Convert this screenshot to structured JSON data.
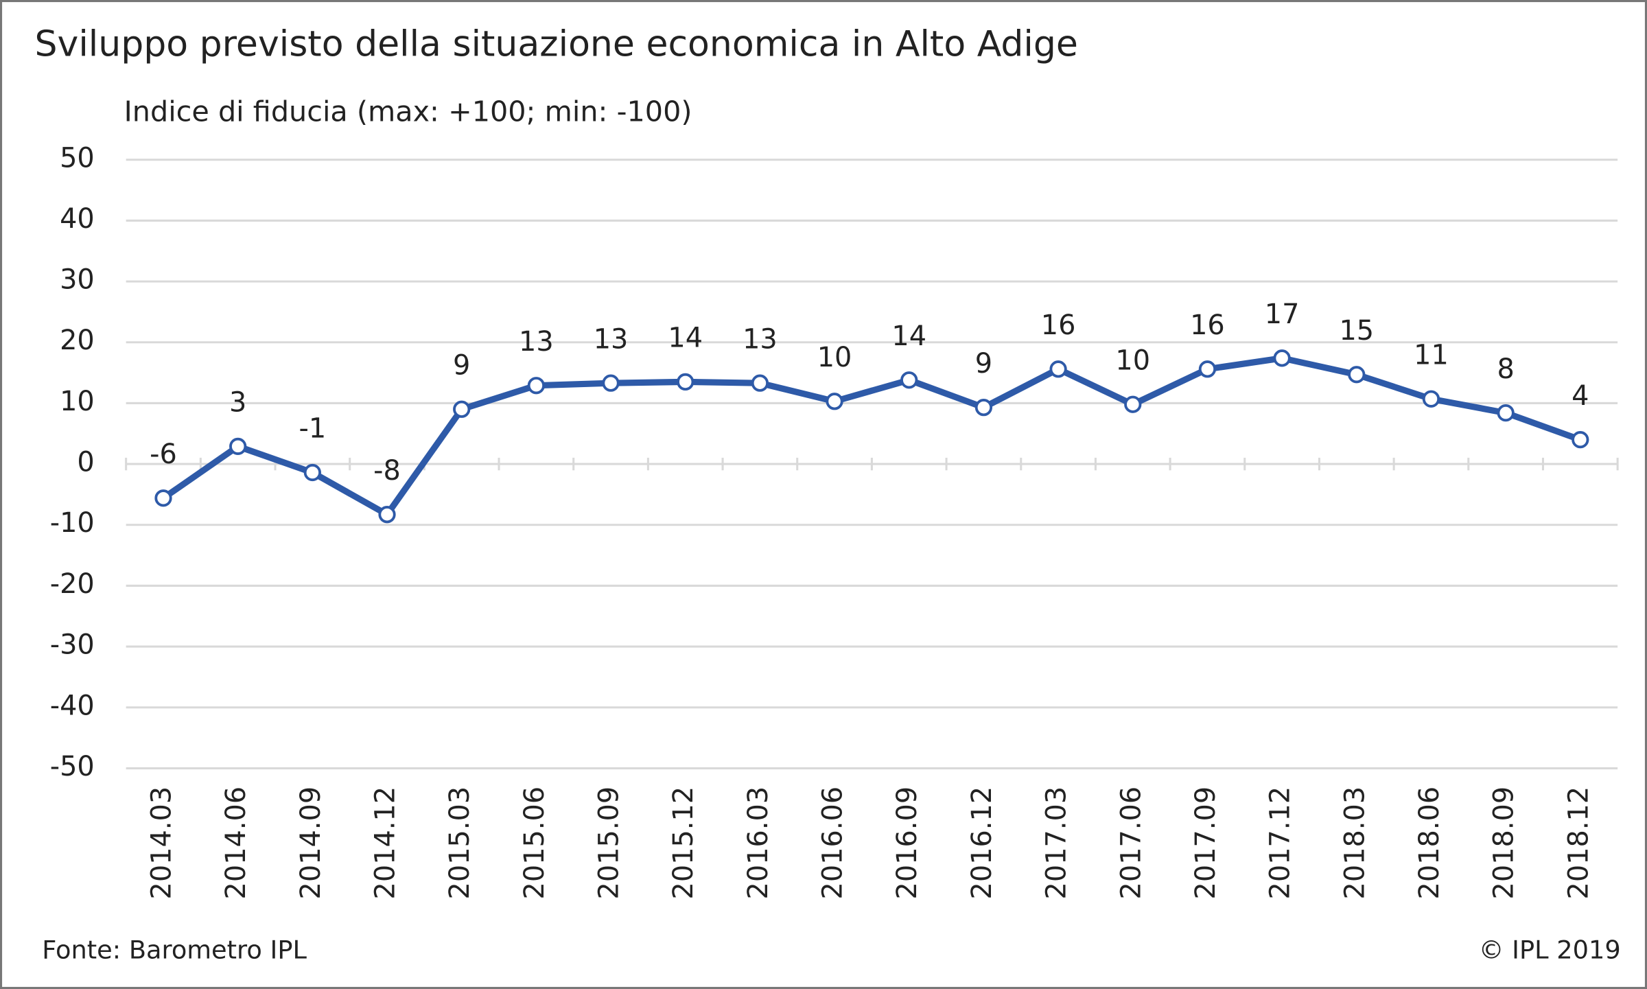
{
  "chart_data": {
    "type": "line",
    "title": "Sviluppo previsto della situazione economica in Alto Adige",
    "subtitle": "Indice di fiducia (max: +100; min: -100)",
    "source": "Fonte: Barometro IPL",
    "copyright": "© IPL 2019",
    "categories": [
      "2014.03",
      "2014.06",
      "2014.09",
      "2014.12",
      "2015.03",
      "2015.06",
      "2015.09",
      "2015.12",
      "2016.03",
      "2016.06",
      "2016.09",
      "2016.12",
      "2017.03",
      "2017.06",
      "2017.09",
      "2017.12",
      "2018.03",
      "2018.06",
      "2018.09",
      "2018.12"
    ],
    "series": [
      {
        "name": "Indice di fiducia",
        "color": "#2e5aa8",
        "values": [
          -5.6,
          2.9,
          -1.4,
          -8.3,
          9.0,
          12.9,
          13.3,
          13.5,
          13.3,
          10.3,
          13.8,
          9.3,
          15.6,
          9.8,
          15.6,
          17.4,
          14.7,
          10.7,
          8.4,
          4.0
        ],
        "value_labels": [
          "-6",
          "3",
          "-1",
          "-8",
          "9",
          "13",
          "13",
          "14",
          "13",
          "10",
          "14",
          "9",
          "16",
          "10",
          "16",
          "17",
          "15",
          "11",
          "8",
          "4"
        ]
      }
    ],
    "ylim": [
      -50,
      50
    ],
    "yticks": [
      -50,
      -40,
      -30,
      -20,
      -10,
      0,
      10,
      20,
      30,
      40,
      50
    ],
    "grid": true
  }
}
